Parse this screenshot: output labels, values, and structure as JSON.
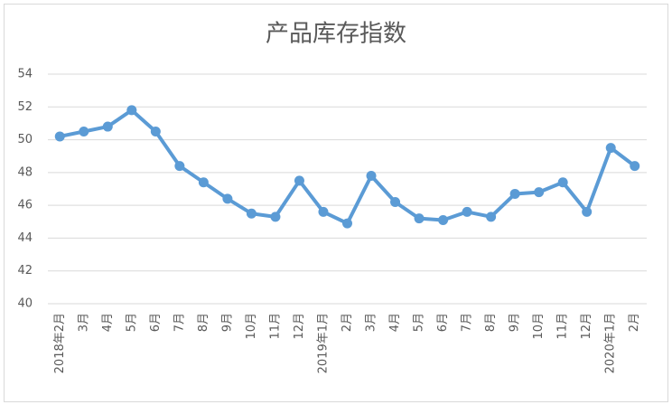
{
  "chart_data": {
    "type": "line",
    "title": "产品库存指数",
    "categories": [
      "2018年2月",
      "3月",
      "4月",
      "5月",
      "6月",
      "7月",
      "8月",
      "9月",
      "10月",
      "11月",
      "12月",
      "2019年1月",
      "2月",
      "3月",
      "4月",
      "5月",
      "6月",
      "7月",
      "8月",
      "9月",
      "10月",
      "11月",
      "12月",
      "2020年1月",
      "2月"
    ],
    "values": [
      50.2,
      50.5,
      50.8,
      51.8,
      50.5,
      48.4,
      47.4,
      46.4,
      45.5,
      45.3,
      47.5,
      45.6,
      44.9,
      47.8,
      46.2,
      45.2,
      45.1,
      45.6,
      45.3,
      46.7,
      46.8,
      47.4,
      45.6,
      49.5,
      48.4
    ],
    "color": "#5b9bd5",
    "ylim": [
      40,
      54
    ],
    "yticks": [
      40,
      42,
      44,
      46,
      48,
      50,
      52,
      54
    ],
    "grid": true
  }
}
